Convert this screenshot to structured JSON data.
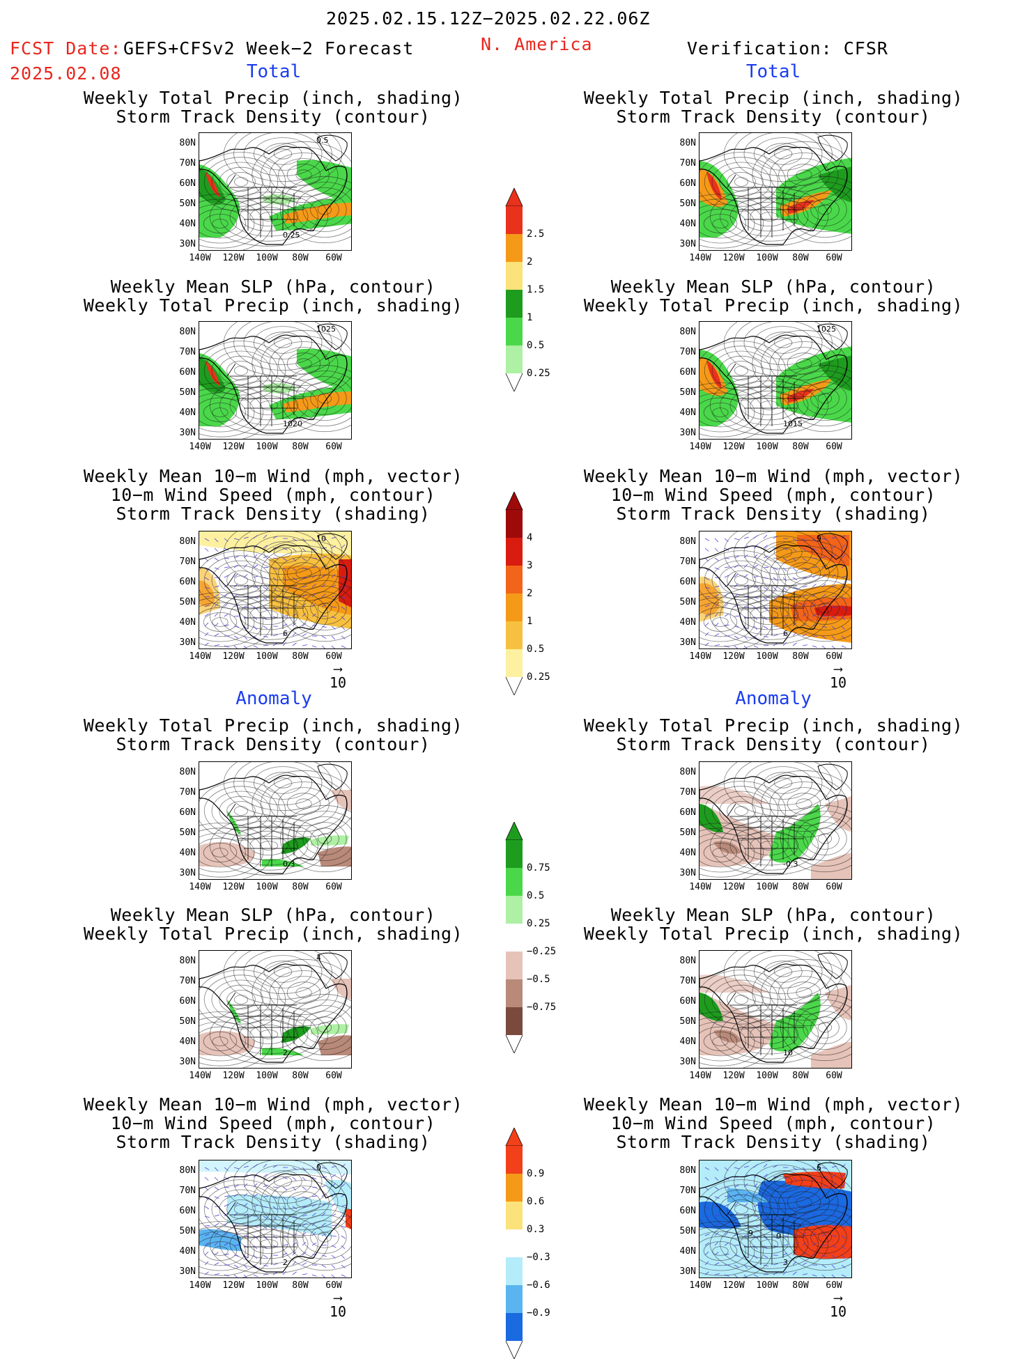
{
  "header": {
    "date_range": "2025.02.15.12Z−2025.02.22.06Z",
    "fcst_label": "FCST Date:",
    "fcst_model": "GEFS+CFSv2 Week−2 Forecast",
    "fcst_date": "2025.02.08",
    "region": "N. America",
    "verification": "Verification: CFSR"
  },
  "sections": {
    "total": "Total",
    "anomaly": "Anomaly"
  },
  "titles": {
    "precip_track": [
      "Weekly Total Precip (inch, shading)",
      "Storm Track Density (contour)"
    ],
    "slp_precip": [
      "Weekly Mean SLP (hPa, contour)",
      "Weekly Total Precip (inch, shading)"
    ],
    "wind_track": [
      "Weekly Mean 10−m Wind (mph, vector)",
      "10−m Wind Speed (mph, contour)",
      "Storm Track Density (shading)"
    ]
  },
  "axes": {
    "lat_labels": [
      "80N",
      "70N",
      "60N",
      "50N",
      "40N",
      "30N"
    ],
    "lon_labels": [
      "140W",
      "120W",
      "100W",
      "80W",
      "60W"
    ]
  },
  "reference_vector": "10",
  "contour_labels": {
    "fcst_total_track": [
      "0.25",
      "0.5"
    ],
    "fcst_total_slp": [
      "1020",
      "1025"
    ],
    "obs_total_slp": [
      "1015",
      "1025"
    ],
    "fcst_total_wind": [
      "6",
      "10"
    ],
    "obs_total_wind": [
      "6",
      "9"
    ],
    "obs_anom_track": [
      "-0.3"
    ],
    "fcst_anom_track": [
      "0.3"
    ],
    "fcst_anom_slp": [
      "2",
      "4"
    ],
    "obs_anom_slp": [
      "10"
    ],
    "fcst_anom_wind": [
      "2",
      "0"
    ],
    "obs_anom_wind": [
      "3",
      "6",
      "9",
      "0"
    ]
  },
  "colorbars": {
    "total_precip": {
      "labels": [
        "2.5",
        "2",
        "1.5",
        "1",
        "0.5",
        "0.25"
      ],
      "colors": [
        "#e8321c",
        "#f59a18",
        "#fbe27a",
        "#1e9c1e",
        "#4ad84a",
        "#aef0a4"
      ]
    },
    "total_track": {
      "labels": [
        "4",
        "3",
        "2",
        "1",
        "0.5",
        "0.25"
      ],
      "colors": [
        "#9e0a0a",
        "#d81c10",
        "#f2641a",
        "#f59a18",
        "#f8c040",
        "#fdf0a0"
      ]
    },
    "anom_precip": {
      "labels": [
        "0.75",
        "0.5",
        "0.25",
        "−0.25",
        "−0.5",
        "−0.75"
      ],
      "colors": [
        "#1e9c1e",
        "#4ad84a",
        "#aef0a4",
        "#ffffff",
        "#e6c3b9",
        "#b98a7a",
        "#7a4a3e"
      ]
    },
    "anom_track": {
      "labels": [
        "0.9",
        "0.6",
        "0.3",
        "−0.3",
        "−0.6",
        "−0.9"
      ],
      "colors": [
        "#f2401a",
        "#f59a18",
        "#fbe27a",
        "#ffffff",
        "#b4ecfa",
        "#5ab4f0",
        "#1a6ae0"
      ]
    }
  }
}
